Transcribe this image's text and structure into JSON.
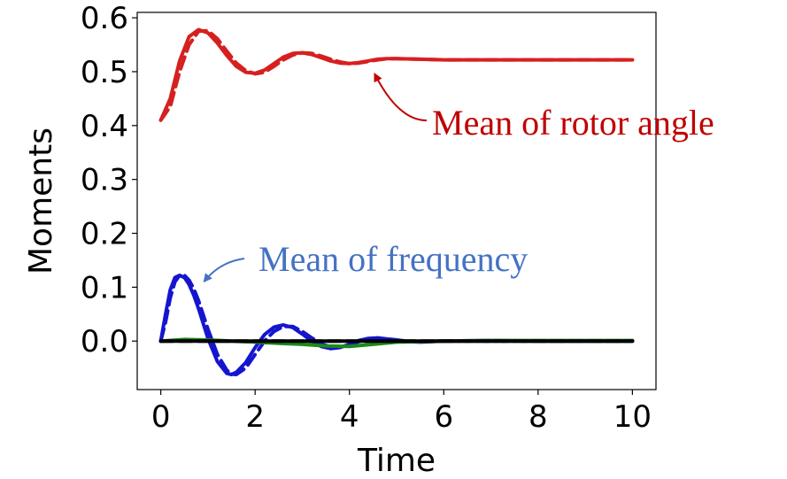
{
  "chart_data": {
    "type": "line",
    "title": "",
    "xlabel": "Time",
    "ylabel": "Moments",
    "xlim": [
      -0.5,
      10.5
    ],
    "ylim": [
      -0.09,
      0.61
    ],
    "xticks": [
      0,
      2,
      4,
      6,
      8,
      10
    ],
    "xtick_labels": [
      "0",
      "2",
      "4",
      "6",
      "8",
      "10"
    ],
    "yticks": [
      0.0,
      0.1,
      0.2,
      0.3,
      0.4,
      0.5,
      0.6
    ],
    "ytick_labels": [
      "0.0",
      "0.1",
      "0.2",
      "0.3",
      "0.4",
      "0.5",
      "0.6"
    ],
    "grid": false,
    "legend": "none",
    "series": [
      {
        "color": "#d62020",
        "style": "solid",
        "x": [
          0,
          0.2,
          0.4,
          0.6,
          0.8,
          1.0,
          1.2,
          1.4,
          1.6,
          1.8,
          2.0,
          2.2,
          2.4,
          2.6,
          2.8,
          3.0,
          3.2,
          3.4,
          3.6,
          3.8,
          4.0,
          4.2,
          4.4,
          4.6,
          4.8,
          5.0,
          5.5,
          6.0,
          7.0,
          8.0,
          9.0,
          10.0
        ],
        "y": [
          0.41,
          0.45,
          0.52,
          0.565,
          0.578,
          0.572,
          0.553,
          0.53,
          0.51,
          0.499,
          0.497,
          0.503,
          0.515,
          0.527,
          0.534,
          0.535,
          0.532,
          0.526,
          0.52,
          0.516,
          0.515,
          0.517,
          0.52,
          0.523,
          0.524,
          0.524,
          0.523,
          0.522,
          0.522,
          0.522,
          0.522,
          0.522
        ]
      },
      {
        "color": "#d62020",
        "style": "dashed",
        "x": [
          0,
          0.2,
          0.4,
          0.6,
          0.8,
          1.0,
          1.2,
          1.4,
          1.6,
          1.8,
          2.0,
          2.2,
          2.4,
          2.6,
          2.8,
          3.0,
          3.2,
          3.4,
          3.6,
          3.8,
          4.0,
          4.2,
          4.4,
          4.6,
          4.8,
          5.0,
          5.5,
          6.0,
          7.0,
          8.0,
          9.0,
          10.0
        ],
        "y": [
          0.41,
          0.435,
          0.5,
          0.55,
          0.575,
          0.576,
          0.561,
          0.538,
          0.516,
          0.502,
          0.496,
          0.499,
          0.51,
          0.522,
          0.531,
          0.535,
          0.534,
          0.529,
          0.523,
          0.518,
          0.515,
          0.516,
          0.519,
          0.522,
          0.524,
          0.524,
          0.523,
          0.522,
          0.522,
          0.522,
          0.522,
          0.522
        ]
      },
      {
        "color": "#1515d0",
        "style": "solid",
        "x": [
          0,
          0.1,
          0.2,
          0.3,
          0.4,
          0.5,
          0.6,
          0.7,
          0.8,
          1.0,
          1.2,
          1.4,
          1.5,
          1.6,
          1.8,
          2.0,
          2.2,
          2.4,
          2.6,
          2.8,
          3.0,
          3.2,
          3.4,
          3.6,
          3.8,
          4.0,
          4.2,
          4.4,
          4.6,
          4.8,
          5.0,
          5.2,
          5.5,
          6.0,
          7.0,
          8.0,
          9.0,
          10.0
        ],
        "y": [
          0.0,
          0.05,
          0.095,
          0.118,
          0.122,
          0.118,
          0.105,
          0.085,
          0.06,
          0.005,
          -0.038,
          -0.06,
          -0.062,
          -0.058,
          -0.04,
          -0.012,
          0.012,
          0.026,
          0.03,
          0.025,
          0.013,
          0.0,
          -0.01,
          -0.014,
          -0.012,
          -0.006,
          0.001,
          0.005,
          0.006,
          0.004,
          0.002,
          -0.001,
          -0.002,
          0.0,
          0.001,
          0.0,
          0.0,
          0.0
        ]
      },
      {
        "color": "#1515d0",
        "style": "dashed",
        "x": [
          0,
          0.1,
          0.2,
          0.3,
          0.4,
          0.5,
          0.6,
          0.7,
          0.8,
          1.0,
          1.2,
          1.4,
          1.5,
          1.6,
          1.8,
          2.0,
          2.2,
          2.4,
          2.6,
          2.8,
          3.0,
          3.2,
          3.4,
          3.6,
          3.8,
          4.0,
          4.2,
          4.4,
          4.6,
          4.8,
          5.0,
          5.2,
          5.5,
          6.0,
          7.0,
          8.0,
          9.0,
          10.0
        ],
        "y": [
          0.0,
          0.035,
          0.08,
          0.11,
          0.122,
          0.122,
          0.113,
          0.097,
          0.075,
          0.022,
          -0.025,
          -0.054,
          -0.061,
          -0.062,
          -0.05,
          -0.025,
          0.0,
          0.018,
          0.027,
          0.027,
          0.018,
          0.006,
          -0.005,
          -0.011,
          -0.011,
          -0.007,
          -0.001,
          0.003,
          0.005,
          0.004,
          0.002,
          0.0,
          -0.001,
          0.0,
          0.0,
          0.0,
          0.0,
          0.0
        ]
      },
      {
        "color": "#1a8a1a",
        "style": "solid",
        "x": [
          0,
          0.5,
          1.0,
          1.5,
          2.0,
          2.5,
          3.0,
          3.5,
          4.0,
          4.5,
          5.0,
          6.0,
          7.0,
          8.0,
          9.0,
          10.0
        ],
        "y": [
          0.0,
          0.003,
          0.002,
          0.0,
          -0.002,
          -0.004,
          -0.006,
          -0.009,
          -0.01,
          -0.006,
          -0.002,
          0.0,
          0.001,
          0.001,
          0.001,
          0.001
        ]
      },
      {
        "color": "#000000",
        "style": "solid",
        "x": [
          0,
          2,
          4,
          6,
          8,
          10
        ],
        "y": [
          0.0,
          0.0,
          0.0,
          0.0,
          0.0,
          0.0
        ]
      },
      {
        "color": "#000000",
        "style": "dashed",
        "x": [
          0,
          2,
          4,
          6,
          8,
          10
        ],
        "y": [
          0.0,
          0.0,
          0.0,
          0.0,
          0.0,
          0.0
        ]
      }
    ],
    "annotations": [
      {
        "text": "Mean of rotor angle",
        "color": "#c00000",
        "arrow_to": [
          4.5,
          0.515
        ]
      },
      {
        "text": "Mean of frequency",
        "color": "#4472c4",
        "arrow_to": [
          1.0,
          0.098
        ]
      }
    ]
  }
}
